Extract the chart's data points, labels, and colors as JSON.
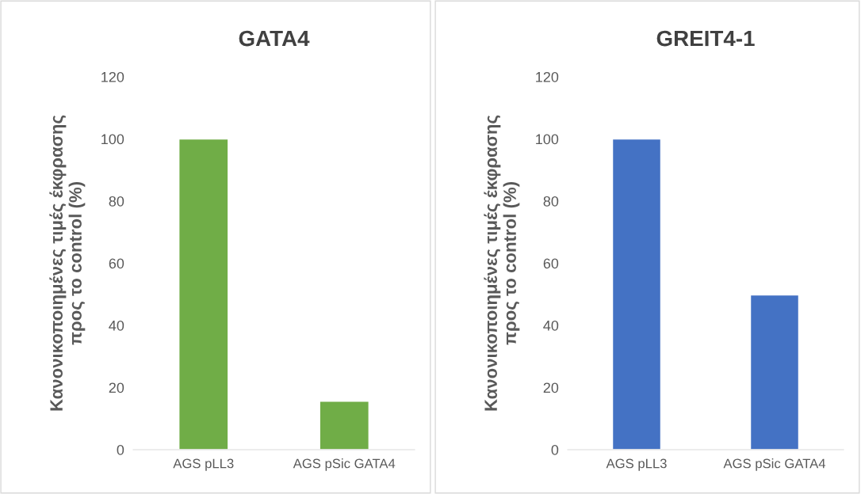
{
  "chart_data": [
    {
      "type": "bar",
      "title": "GATA4",
      "ylabel": "Κανονικοποιημένες τιμές έκφρασης\nπρος το control (%)",
      "categories": [
        "AGS pLL3",
        "AGS pSic GATA4"
      ],
      "values": [
        100,
        15.6
      ],
      "color": "#70ad47",
      "ylim": [
        0,
        120
      ],
      "yticks": [
        0,
        20,
        40,
        60,
        80,
        100,
        120
      ],
      "grid": false,
      "legend": false
    },
    {
      "type": "bar",
      "title": "GREIT4-1",
      "ylabel": "Κανονικοποιημένες τιμές έκφρασης\nπρος το control (%)",
      "categories": [
        "AGS pLL3",
        "AGS pSic GATA4"
      ],
      "values": [
        100,
        49.8
      ],
      "color": "#4472c4",
      "ylim": [
        0,
        120
      ],
      "yticks": [
        0,
        20,
        40,
        60,
        80,
        100,
        120
      ],
      "grid": false,
      "legend": false
    }
  ]
}
